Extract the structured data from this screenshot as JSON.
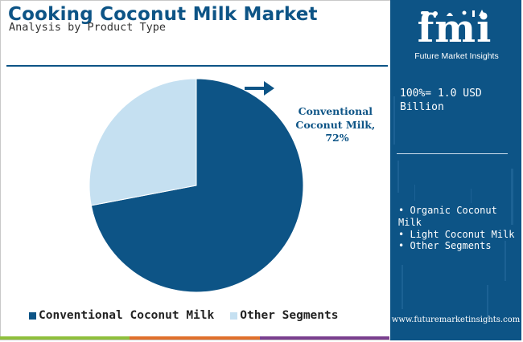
{
  "header": {
    "title": "Cooking Coconut Milk Market",
    "subtitle": "Analysis by Product Type"
  },
  "colors": {
    "brand_blue": "#0d5486",
    "light_blue": "#c5e0f1",
    "bar_green": "#8fbf3b",
    "bar_orange": "#e0702b",
    "bar_purple": "#7a3f8f"
  },
  "chart_data": {
    "type": "pie",
    "title": "",
    "slices": [
      {
        "name": "Conventional Coconut Milk",
        "value": 72,
        "color": "#0d5486"
      },
      {
        "name": "Other Segments",
        "value": 28,
        "color": "#c5e0f1"
      }
    ],
    "annotation": {
      "lines": [
        "Conventional",
        "Coconut Milk,",
        "72%"
      ],
      "arrow_icon": "right-arrow-icon"
    },
    "legend": {
      "position": "bottom",
      "entries": [
        "Conventional Coconut Milk",
        "Other Segments"
      ]
    }
  },
  "panel": {
    "logo_text": "fmi",
    "logo_caption": "Future Market Insights",
    "total_label": "100%= 1.0 USD Billion",
    "segments": [
      "• Organic Coconut Milk",
      "• Light Coconut Milk",
      "• Other Segments"
    ],
    "website": "www.futuremarketinsights.com"
  }
}
